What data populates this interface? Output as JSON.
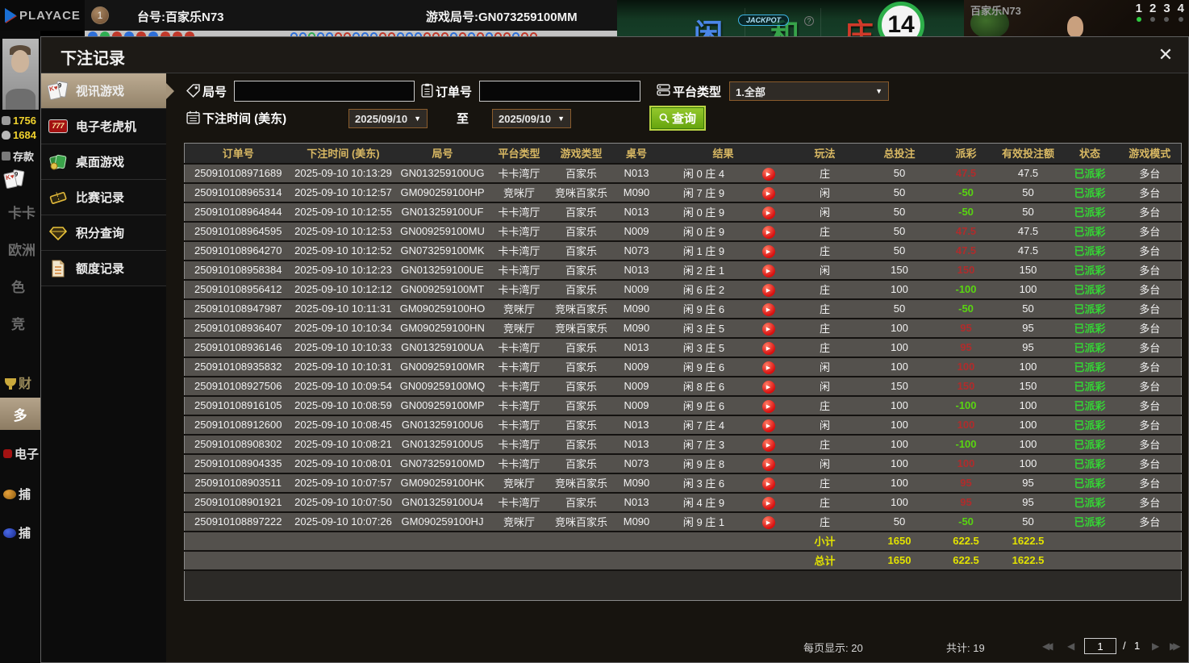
{
  "top_bar": {
    "brand": "PLAYACE",
    "badge": "1",
    "table_no": "台号:百家乐N73",
    "round_no": "游戏局号:GN073259100MM"
  },
  "game": {
    "jackpot": "JACKPOT",
    "help": "?",
    "player": "闲",
    "tie": "和",
    "banker": "庄",
    "timer": "14",
    "video_title": "百家乐N73",
    "seats": [
      "1",
      "2",
      "3",
      "4"
    ]
  },
  "roadmap": {
    "big": [
      "b",
      "g",
      "r",
      "b",
      "r",
      "b",
      "r",
      "r",
      "r"
    ],
    "small": [
      "b",
      "b",
      "g",
      "b",
      "b",
      "r",
      "r",
      "b",
      "b",
      "b",
      "r",
      "r",
      "b",
      "b",
      "b",
      "r",
      "r",
      "r",
      "b",
      "r",
      "b",
      "r",
      "b",
      "r",
      "r",
      "b",
      "r",
      "r"
    ]
  },
  "left_rail": {
    "stat1": "1756",
    "stat2": "1684",
    "deposit": "存款",
    "nav1": "卡卡",
    "nav2": "欧洲",
    "nav3": "色",
    "nav4": "竞",
    "nav5": "财",
    "nav6": "多",
    "nav7": "电子",
    "nav8": "捕",
    "nav9": "捕"
  },
  "modal": {
    "title": "下注记录",
    "close": "✕",
    "sidebar": [
      {
        "label": "视讯游戏",
        "selected": true
      },
      {
        "label": "电子老虎机"
      },
      {
        "label": "桌面游戏"
      },
      {
        "label": "比赛记录"
      },
      {
        "label": "积分查询"
      },
      {
        "label": "额度记录"
      }
    ],
    "slot_icon_text": "777",
    "filters": {
      "round_label": "局号",
      "order_label": "订单号",
      "platform_label": "平台类型",
      "platform_value": "1.全部",
      "time_label": "下注时间 (美东)",
      "date_from": "2025/09/10",
      "date_to": "2025/09/10",
      "to_label": "至",
      "search_label": "查询",
      "caret": "▼"
    },
    "table": {
      "headers": [
        "订单号",
        "下注时间 (美东)",
        "局号",
        "平台类型",
        "游戏类型",
        "桌号",
        "结果",
        "玩法",
        "总投注",
        "派彩",
        "有效投注额",
        "状态",
        "游戏模式"
      ],
      "rows": [
        {
          "order_id": "250910108971689",
          "bet_time": "2025-09-10 10:13:29",
          "round_id": "GN013259100UG",
          "platform": "卡卡湾厅",
          "game_type": "百家乐",
          "table_no": "N013",
          "result": "闲 0 庄 4",
          "play": "庄",
          "total_bet": "50",
          "payout": "47.5",
          "valid_bet": "47.5",
          "status": "已派彩",
          "mode": "多台"
        },
        {
          "order_id": "250910108965314",
          "bet_time": "2025-09-10 10:12:57",
          "round_id": "GM090259100HP",
          "platform": "竞咪厅",
          "game_type": "竞咪百家乐",
          "table_no": "M090",
          "result": "闲 7 庄 9",
          "play": "闲",
          "total_bet": "50",
          "payout": "-50",
          "valid_bet": "50",
          "status": "已派彩",
          "mode": "多台"
        },
        {
          "order_id": "250910108964844",
          "bet_time": "2025-09-10 10:12:55",
          "round_id": "GN013259100UF",
          "platform": "卡卡湾厅",
          "game_type": "百家乐",
          "table_no": "N013",
          "result": "闲 0 庄 9",
          "play": "闲",
          "total_bet": "50",
          "payout": "-50",
          "valid_bet": "50",
          "status": "已派彩",
          "mode": "多台"
        },
        {
          "order_id": "250910108964595",
          "bet_time": "2025-09-10 10:12:53",
          "round_id": "GN009259100MU",
          "platform": "卡卡湾厅",
          "game_type": "百家乐",
          "table_no": "N009",
          "result": "闲 0 庄 9",
          "play": "庄",
          "total_bet": "50",
          "payout": "47.5",
          "valid_bet": "47.5",
          "status": "已派彩",
          "mode": "多台"
        },
        {
          "order_id": "250910108964270",
          "bet_time": "2025-09-10 10:12:52",
          "round_id": "GN073259100MK",
          "platform": "卡卡湾厅",
          "game_type": "百家乐",
          "table_no": "N073",
          "result": "闲 1 庄 9",
          "play": "庄",
          "total_bet": "50",
          "payout": "47.5",
          "valid_bet": "47.5",
          "status": "已派彩",
          "mode": "多台"
        },
        {
          "order_id": "250910108958384",
          "bet_time": "2025-09-10 10:12:23",
          "round_id": "GN013259100UE",
          "platform": "卡卡湾厅",
          "game_type": "百家乐",
          "table_no": "N013",
          "result": "闲 2 庄 1",
          "play": "闲",
          "total_bet": "150",
          "payout": "150",
          "valid_bet": "150",
          "status": "已派彩",
          "mode": "多台"
        },
        {
          "order_id": "250910108956412",
          "bet_time": "2025-09-10 10:12:12",
          "round_id": "GN009259100MT",
          "platform": "卡卡湾厅",
          "game_type": "百家乐",
          "table_no": "N009",
          "result": "闲 6 庄 2",
          "play": "庄",
          "total_bet": "100",
          "payout": "-100",
          "valid_bet": "100",
          "status": "已派彩",
          "mode": "多台"
        },
        {
          "order_id": "250910108947987",
          "bet_time": "2025-09-10 10:11:31",
          "round_id": "GM090259100HO",
          "platform": "竞咪厅",
          "game_type": "竞咪百家乐",
          "table_no": "M090",
          "result": "闲 9 庄 6",
          "play": "庄",
          "total_bet": "50",
          "payout": "-50",
          "valid_bet": "50",
          "status": "已派彩",
          "mode": "多台"
        },
        {
          "order_id": "250910108936407",
          "bet_time": "2025-09-10 10:10:34",
          "round_id": "GM090259100HN",
          "platform": "竞咪厅",
          "game_type": "竞咪百家乐",
          "table_no": "M090",
          "result": "闲 3 庄 5",
          "play": "庄",
          "total_bet": "100",
          "payout": "95",
          "valid_bet": "95",
          "status": "已派彩",
          "mode": "多台"
        },
        {
          "order_id": "250910108936146",
          "bet_time": "2025-09-10 10:10:33",
          "round_id": "GN013259100UA",
          "platform": "卡卡湾厅",
          "game_type": "百家乐",
          "table_no": "N013",
          "result": "闲 3 庄 5",
          "play": "庄",
          "total_bet": "100",
          "payout": "95",
          "valid_bet": "95",
          "status": "已派彩",
          "mode": "多台"
        },
        {
          "order_id": "250910108935832",
          "bet_time": "2025-09-10 10:10:31",
          "round_id": "GN009259100MR",
          "platform": "卡卡湾厅",
          "game_type": "百家乐",
          "table_no": "N009",
          "result": "闲 9 庄 6",
          "play": "闲",
          "total_bet": "100",
          "payout": "100",
          "valid_bet": "100",
          "status": "已派彩",
          "mode": "多台"
        },
        {
          "order_id": "250910108927506",
          "bet_time": "2025-09-10 10:09:54",
          "round_id": "GN009259100MQ",
          "platform": "卡卡湾厅",
          "game_type": "百家乐",
          "table_no": "N009",
          "result": "闲 8 庄 6",
          "play": "闲",
          "total_bet": "150",
          "payout": "150",
          "valid_bet": "150",
          "status": "已派彩",
          "mode": "多台"
        },
        {
          "order_id": "250910108916105",
          "bet_time": "2025-09-10 10:08:59",
          "round_id": "GN009259100MP",
          "platform": "卡卡湾厅",
          "game_type": "百家乐",
          "table_no": "N009",
          "result": "闲 9 庄 6",
          "play": "庄",
          "total_bet": "100",
          "payout": "-100",
          "valid_bet": "100",
          "status": "已派彩",
          "mode": "多台"
        },
        {
          "order_id": "250910108912600",
          "bet_time": "2025-09-10 10:08:45",
          "round_id": "GN013259100U6",
          "platform": "卡卡湾厅",
          "game_type": "百家乐",
          "table_no": "N013",
          "result": "闲 7 庄 4",
          "play": "闲",
          "total_bet": "100",
          "payout": "100",
          "valid_bet": "100",
          "status": "已派彩",
          "mode": "多台"
        },
        {
          "order_id": "250910108908302",
          "bet_time": "2025-09-10 10:08:21",
          "round_id": "GN013259100U5",
          "platform": "卡卡湾厅",
          "game_type": "百家乐",
          "table_no": "N013",
          "result": "闲 7 庄 3",
          "play": "庄",
          "total_bet": "100",
          "payout": "-100",
          "valid_bet": "100",
          "status": "已派彩",
          "mode": "多台"
        },
        {
          "order_id": "250910108904335",
          "bet_time": "2025-09-10 10:08:01",
          "round_id": "GN073259100MD",
          "platform": "卡卡湾厅",
          "game_type": "百家乐",
          "table_no": "N073",
          "result": "闲 9 庄 8",
          "play": "闲",
          "total_bet": "100",
          "payout": "100",
          "valid_bet": "100",
          "status": "已派彩",
          "mode": "多台"
        },
        {
          "order_id": "250910108903511",
          "bet_time": "2025-09-10 10:07:57",
          "round_id": "GM090259100HK",
          "platform": "竞咪厅",
          "game_type": "竞咪百家乐",
          "table_no": "M090",
          "result": "闲 3 庄 6",
          "play": "庄",
          "total_bet": "100",
          "payout": "95",
          "valid_bet": "95",
          "status": "已派彩",
          "mode": "多台"
        },
        {
          "order_id": "250910108901921",
          "bet_time": "2025-09-10 10:07:50",
          "round_id": "GN013259100U4",
          "platform": "卡卡湾厅",
          "game_type": "百家乐",
          "table_no": "N013",
          "result": "闲 4 庄 9",
          "play": "庄",
          "total_bet": "100",
          "payout": "95",
          "valid_bet": "95",
          "status": "已派彩",
          "mode": "多台"
        },
        {
          "order_id": "250910108897222",
          "bet_time": "2025-09-10 10:07:26",
          "round_id": "GM090259100HJ",
          "platform": "竞咪厅",
          "game_type": "竞咪百家乐",
          "table_no": "M090",
          "result": "闲 9 庄 1",
          "play": "庄",
          "total_bet": "50",
          "payout": "-50",
          "valid_bet": "50",
          "status": "已派彩",
          "mode": "多台"
        }
      ],
      "subtotal": {
        "label": "小计",
        "total_bet": "1650",
        "payout": "622.5",
        "valid_bet": "1622.5"
      },
      "total": {
        "label": "总计",
        "total_bet": "1650",
        "payout": "622.5",
        "valid_bet": "1622.5"
      }
    },
    "footer": {
      "page_size_label": "每页显示: 20",
      "total_label": "共计: 19",
      "page": "1",
      "page_sep": "/",
      "page_total": "1"
    }
  }
}
